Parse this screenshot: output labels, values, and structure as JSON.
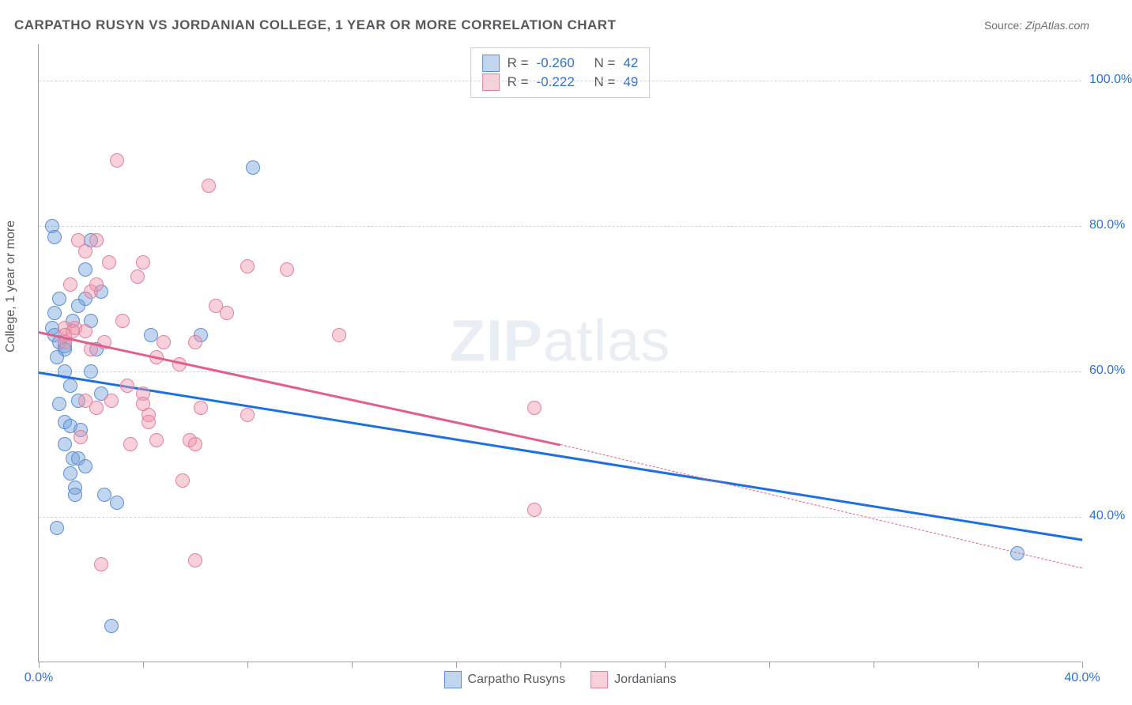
{
  "title": "CARPATHO RUSYN VS JORDANIAN COLLEGE, 1 YEAR OR MORE CORRELATION CHART",
  "source_label": "Source:",
  "source_value": "ZipAtlas.com",
  "watermark_a": "ZIP",
  "watermark_b": "atlas",
  "chart": {
    "type": "scatter",
    "background_color": "#ffffff",
    "grid_color": "#d0d4d8",
    "axis_color": "#9aa0a6",
    "text_color": "#555a5f",
    "value_color": "#2f6fd1",
    "xlim": [
      0,
      40
    ],
    "ylim": [
      20,
      105
    ],
    "xticks": [
      0,
      4,
      8,
      12,
      16,
      20,
      24,
      28,
      32,
      36,
      40
    ],
    "xtick_labels": {
      "0": "0.0%",
      "40": "40.0%"
    },
    "yticks": [
      40,
      60,
      80,
      100
    ],
    "ytick_labels": {
      "40": "40.0%",
      "60": "60.0%",
      "80": "80.0%",
      "100": "100.0%"
    },
    "ylabel": "College, 1 year or more",
    "marker_size": 18,
    "line_width": 3,
    "series": [
      {
        "key": "carpatho",
        "label": "Carpatho Rusyns",
        "fill": "rgba(120,162,219,0.45)",
        "stroke": "#5a8fd6",
        "line_color": "#1e6fe0",
        "r_label": "R =",
        "r_value": "-0.260",
        "n_label": "N =",
        "n_value": "42",
        "trend": {
          "x1": 0,
          "y1": 60,
          "x2": 40,
          "y2": 37,
          "dash_from_x": 40
        },
        "points": [
          [
            0.5,
            80
          ],
          [
            0.6,
            78.5
          ],
          [
            0.8,
            70
          ],
          [
            0.6,
            68
          ],
          [
            0.5,
            66
          ],
          [
            0.6,
            65
          ],
          [
            0.8,
            64
          ],
          [
            1.0,
            63.5
          ],
          [
            1.0,
            63
          ],
          [
            0.7,
            62
          ],
          [
            1.0,
            60
          ],
          [
            1.2,
            58
          ],
          [
            0.8,
            55.5
          ],
          [
            1.0,
            53
          ],
          [
            1.2,
            52.5
          ],
          [
            1.0,
            50
          ],
          [
            1.3,
            48
          ],
          [
            1.5,
            48
          ],
          [
            1.8,
            47
          ],
          [
            1.2,
            46
          ],
          [
            1.4,
            44
          ],
          [
            1.4,
            43
          ],
          [
            2.5,
            43
          ],
          [
            0.7,
            38.5
          ],
          [
            8.2,
            88
          ],
          [
            2.4,
            71
          ],
          [
            4.3,
            65
          ],
          [
            6.2,
            65
          ],
          [
            1.8,
            70
          ],
          [
            1.5,
            69
          ],
          [
            2.0,
            67
          ],
          [
            2.4,
            57
          ],
          [
            3.0,
            42
          ],
          [
            2.0,
            60
          ],
          [
            2.2,
            63
          ],
          [
            1.5,
            56
          ],
          [
            1.6,
            52
          ],
          [
            2.8,
            25
          ],
          [
            37.5,
            35
          ],
          [
            2.0,
            78
          ],
          [
            1.8,
            74
          ],
          [
            1.3,
            67
          ]
        ]
      },
      {
        "key": "jordanian",
        "label": "Jordanians",
        "fill": "rgba(240,150,170,0.45)",
        "stroke": "#e37fa0",
        "line_color": "#e35f8a",
        "r_label": "R =",
        "r_value": "-0.222",
        "n_label": "N =",
        "n_value": "49",
        "trend": {
          "x1": 0,
          "y1": 65.5,
          "x2": 20,
          "y2": 50,
          "dash_from_x": 20,
          "dash_x2": 40,
          "dash_y2": 33
        },
        "points": [
          [
            3.0,
            89
          ],
          [
            6.5,
            85.5
          ],
          [
            1.5,
            78
          ],
          [
            2.2,
            78
          ],
          [
            1.8,
            76.5
          ],
          [
            2.7,
            75
          ],
          [
            4.0,
            75
          ],
          [
            3.8,
            73
          ],
          [
            2.2,
            72
          ],
          [
            8.0,
            74.5
          ],
          [
            9.5,
            74
          ],
          [
            1.0,
            66
          ],
          [
            1.4,
            66
          ],
          [
            1.3,
            65.5
          ],
          [
            1.8,
            65.5
          ],
          [
            1.0,
            65
          ],
          [
            1.0,
            64
          ],
          [
            2.5,
            64
          ],
          [
            2.0,
            63
          ],
          [
            6.8,
            69
          ],
          [
            7.2,
            68
          ],
          [
            4.5,
            62
          ],
          [
            5.4,
            61
          ],
          [
            4.0,
            57
          ],
          [
            3.4,
            58
          ],
          [
            2.8,
            56
          ],
          [
            1.8,
            56
          ],
          [
            11.5,
            65
          ],
          [
            2.2,
            55
          ],
          [
            4.0,
            55.5
          ],
          [
            4.2,
            54
          ],
          [
            6.2,
            55
          ],
          [
            4.2,
            53
          ],
          [
            1.6,
            51
          ],
          [
            3.5,
            50
          ],
          [
            4.5,
            50.5
          ],
          [
            5.8,
            50.5
          ],
          [
            6.0,
            50
          ],
          [
            8.0,
            54
          ],
          [
            5.5,
            45
          ],
          [
            2.4,
            33.5
          ],
          [
            6.0,
            34
          ],
          [
            19.0,
            55
          ],
          [
            19.0,
            41
          ],
          [
            2.0,
            71
          ],
          [
            1.2,
            72
          ],
          [
            3.2,
            67
          ],
          [
            4.8,
            64
          ],
          [
            6.0,
            64
          ]
        ]
      }
    ]
  }
}
